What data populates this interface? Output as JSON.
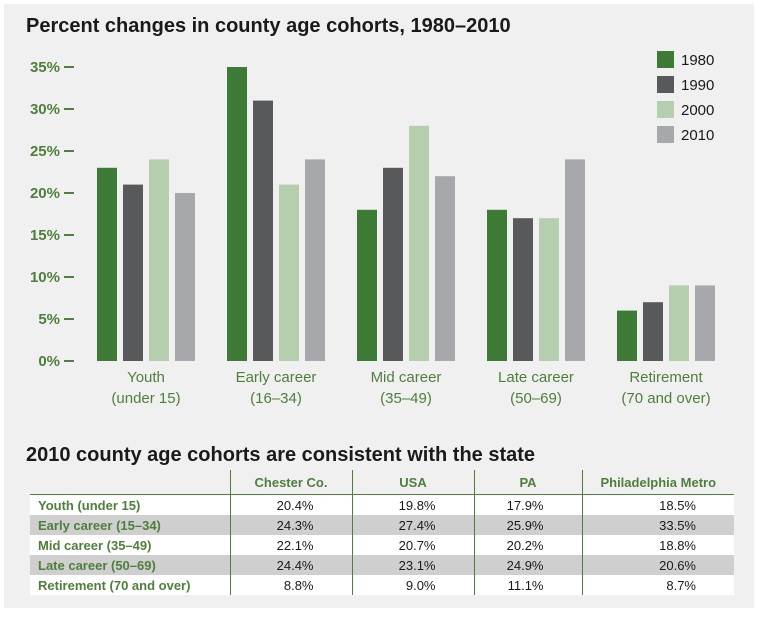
{
  "chart_data": {
    "type": "bar",
    "title": "Percent changes in county age cohorts, 1980–2010",
    "categories": [
      [
        "Youth",
        "(under 15)"
      ],
      [
        "Early career",
        "(16–34)"
      ],
      [
        "Mid career",
        "(35–49)"
      ],
      [
        "Late career",
        "(50–69)"
      ],
      [
        "Retirement",
        "(70 and over)"
      ]
    ],
    "series": [
      {
        "name": "1980",
        "color": "#3d7a35",
        "values": [
          23,
          35,
          18,
          18,
          6
        ]
      },
      {
        "name": "1990",
        "color": "#58595b",
        "values": [
          21,
          31,
          23,
          17,
          7
        ]
      },
      {
        "name": "2000",
        "color": "#b5cfae",
        "values": [
          24,
          21,
          28,
          17,
          9
        ]
      },
      {
        "name": "2010",
        "color": "#a6a8ab",
        "values": [
          20,
          24,
          22,
          24,
          9
        ]
      }
    ],
    "y_ticks": [
      "0%",
      "5%",
      "10%",
      "15%",
      "20%",
      "25%",
      "30%",
      "35%"
    ],
    "ylim": [
      0,
      35
    ],
    "grid": false,
    "legend_position": "top-right"
  },
  "table": {
    "title": "2010 county age cohorts are consistent with the state",
    "columns": [
      "",
      "Chester Co.",
      "USA",
      "PA",
      "Philadelphia Metro"
    ],
    "rows": [
      [
        "Youth (under 15)",
        "20.4%",
        "19.8%",
        "17.9%",
        "18.5%"
      ],
      [
        "Early career (15–34)",
        "24.3%",
        "27.4%",
        "25.9%",
        "33.5%"
      ],
      [
        "Mid career (35–49)",
        "22.1%",
        "20.7%",
        "20.2%",
        "18.8%"
      ],
      [
        "Late career (50–69)",
        "24.4%",
        "23.1%",
        "24.9%",
        "20.6%"
      ],
      [
        "Retirement (70 and over)",
        "8.8%",
        "9.0%",
        "11.1%",
        "8.7%"
      ]
    ]
  }
}
